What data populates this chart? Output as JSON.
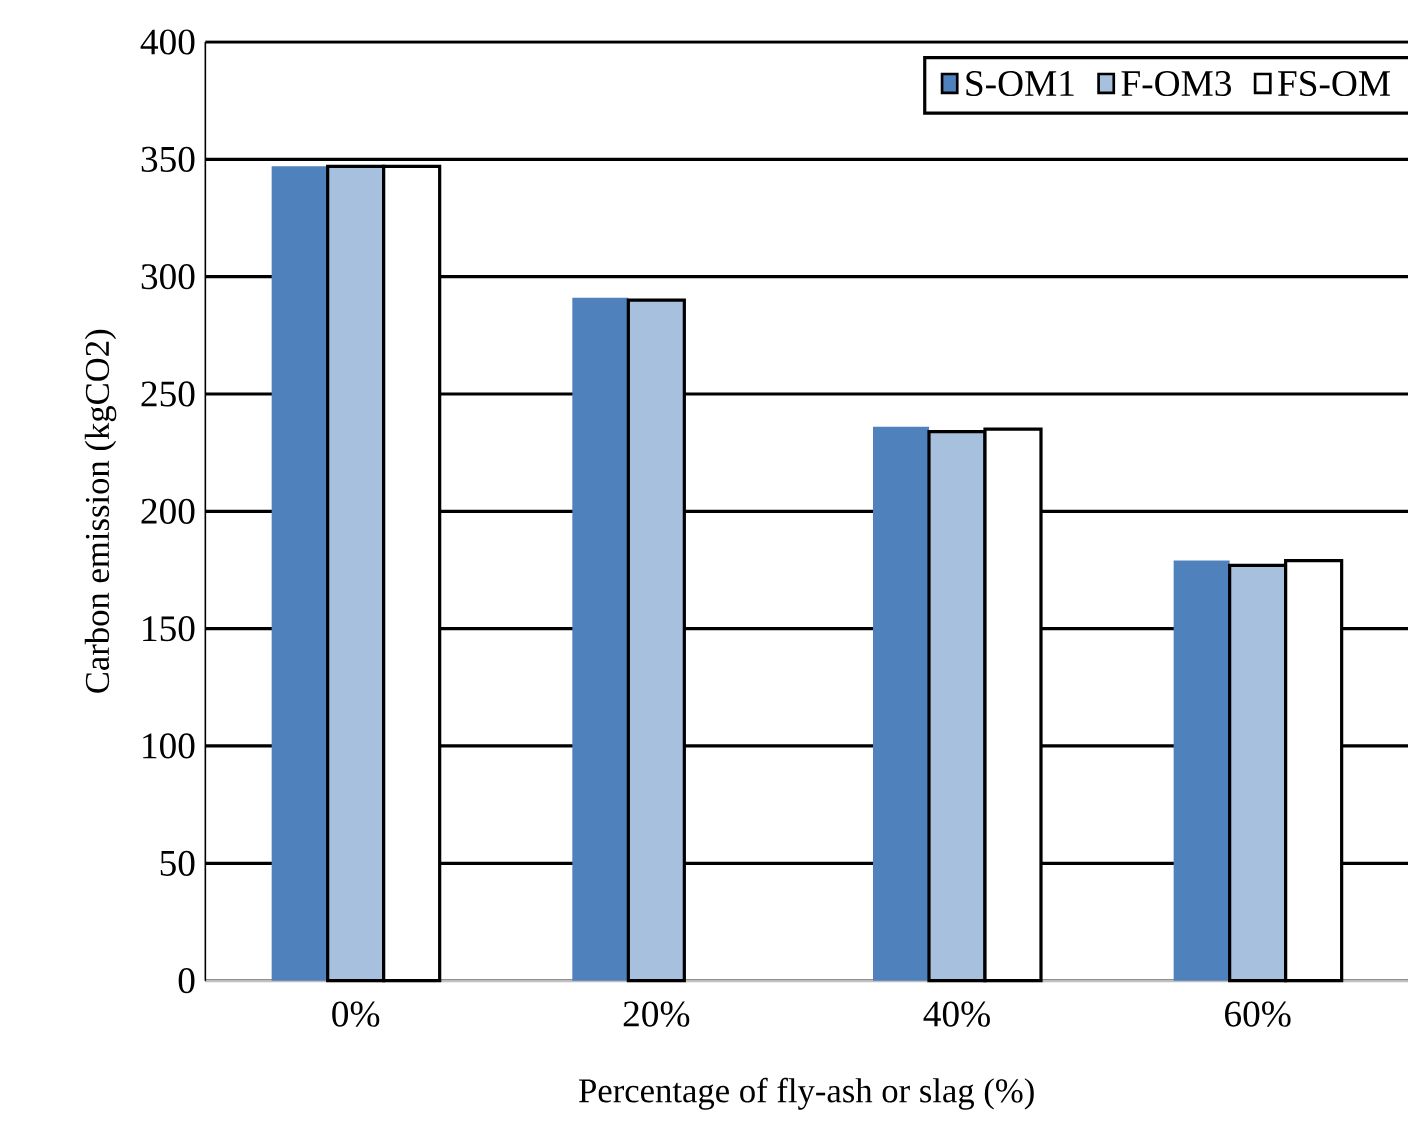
{
  "chart_data": {
    "type": "bar",
    "xlabel": "Percentage of fly-ash or slag (%)",
    "ylabel": "Carbon emission (kgCO2)",
    "categories": [
      "0%",
      "20%",
      "40%",
      "60%"
    ],
    "series": [
      {
        "name": "S-OM1",
        "color": "#4f81bd",
        "values": [
          347,
          291,
          236,
          179
        ]
      },
      {
        "name": "F-OM3",
        "color": "#a7c0de",
        "values": [
          347,
          290,
          234,
          177
        ]
      },
      {
        "name": "FS-OM",
        "color": "#ffffff",
        "values": [
          347,
          null,
          235,
          179
        ]
      }
    ],
    "ylim": [
      0,
      400
    ],
    "yticks": [
      0,
      50,
      100,
      150,
      200,
      250,
      300,
      350,
      400
    ],
    "grid": "y",
    "legend": "top right"
  }
}
